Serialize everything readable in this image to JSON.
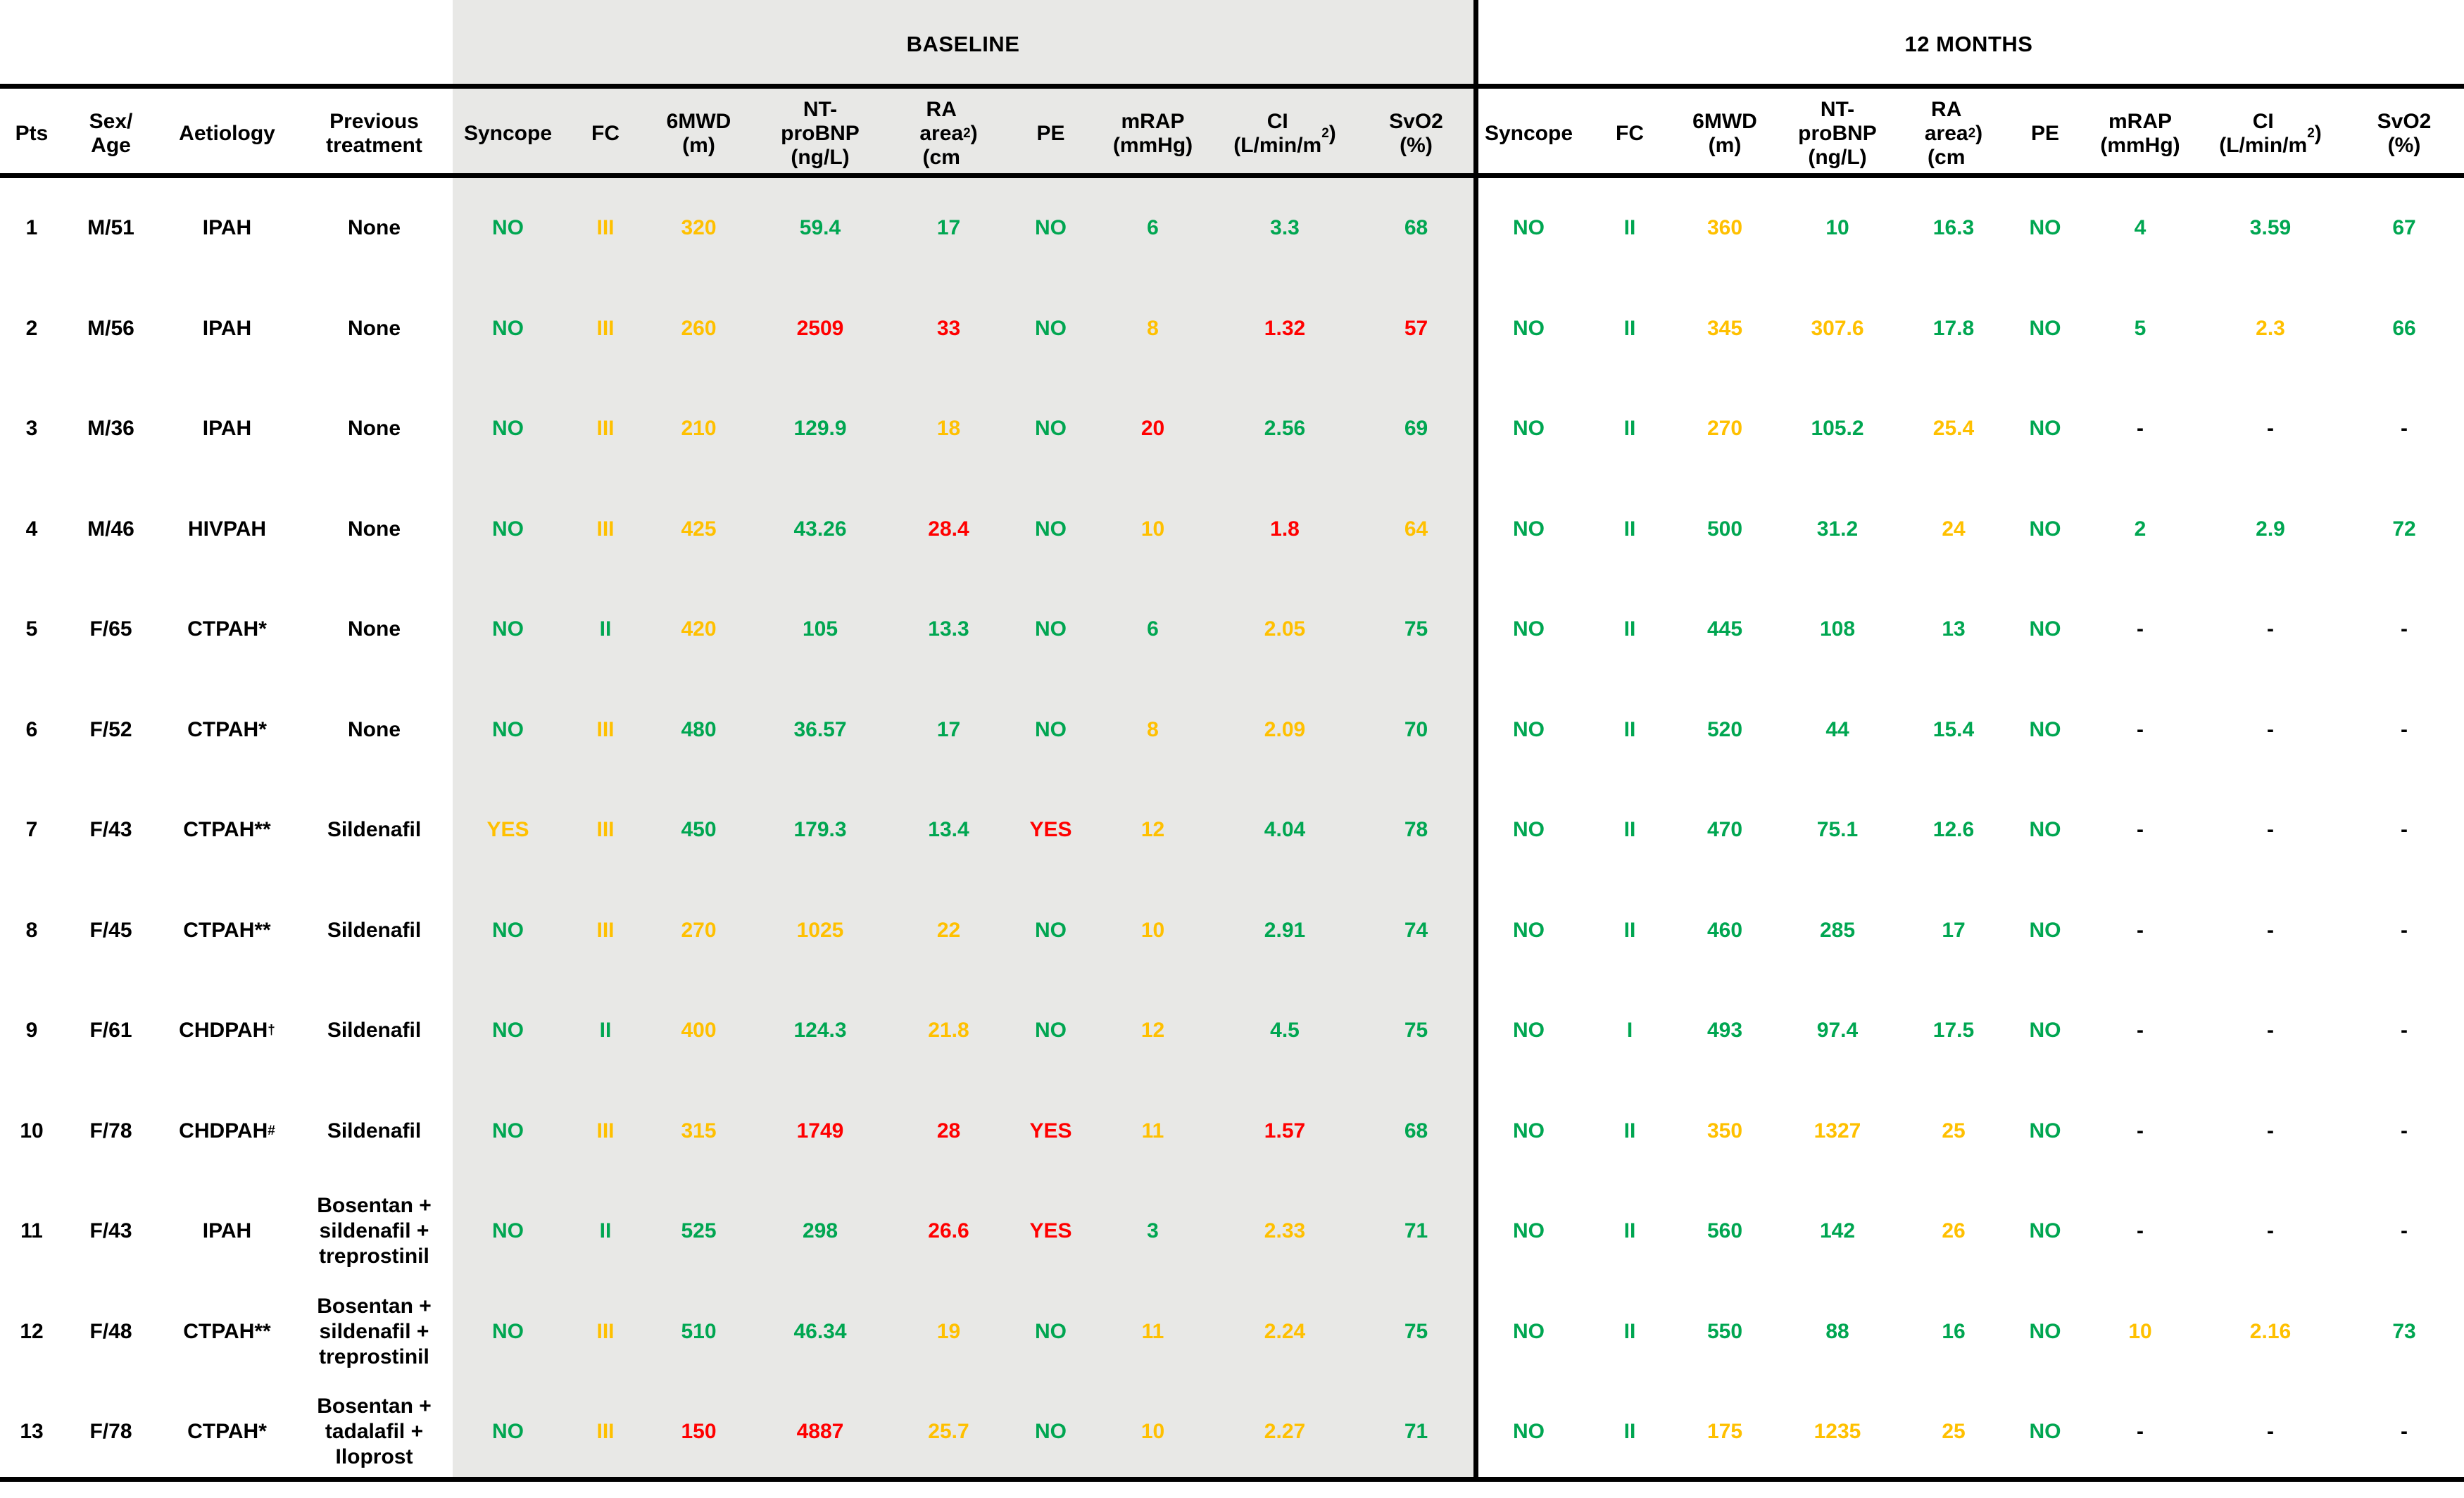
{
  "colors": {
    "green": "#00A651",
    "amber": "#FFC000",
    "red": "#FF0000",
    "black": "#000000",
    "section_bg": "#E8E8E6",
    "rule": "#000000"
  },
  "sections": [
    {
      "label": "BASELINE"
    },
    {
      "label": "12 MONTHS"
    }
  ],
  "left_headers": [
    "Pts",
    "Sex/\nAge",
    "Aetiology",
    "Previous\ntreatment"
  ],
  "metric_headers": [
    {
      "id": "syncope",
      "pre": "Syncope",
      "sup": "",
      "post": ""
    },
    {
      "id": "fc",
      "pre": "FC",
      "sup": "",
      "post": ""
    },
    {
      "id": "6mwd",
      "pre": "6MWD\n(m)",
      "sup": "",
      "post": ""
    },
    {
      "id": "ntprobnp",
      "pre": "NT-\nproBNP\n(ng/L)",
      "sup": "",
      "post": ""
    },
    {
      "id": "ra-area",
      "pre": "RA\narea\n(cm",
      "sup": "2",
      "post": ")"
    },
    {
      "id": "pe",
      "pre": "PE",
      "sup": "",
      "post": ""
    },
    {
      "id": "mrap",
      "pre": "mRAP\n(mmHg)",
      "sup": "",
      "post": ""
    },
    {
      "id": "ci",
      "pre": "CI\n(L/min/m",
      "sup": "2",
      "post": ")"
    },
    {
      "id": "svo2",
      "pre": "SvO2\n(%)",
      "sup": "",
      "post": ""
    }
  ],
  "rows": [
    {
      "pts": "1",
      "sex_age": "M/51",
      "aetiology": "IPAH",
      "aetiology_sup": "",
      "treatment": "None",
      "baseline": [
        {
          "v": "NO",
          "c": "g"
        },
        {
          "v": "III",
          "c": "y"
        },
        {
          "v": "320",
          "c": "y"
        },
        {
          "v": "59.4",
          "c": "g"
        },
        {
          "v": "17",
          "c": "g"
        },
        {
          "v": "NO",
          "c": "g"
        },
        {
          "v": "6",
          "c": "g"
        },
        {
          "v": "3.3",
          "c": "g"
        },
        {
          "v": "68",
          "c": "g"
        }
      ],
      "months12": [
        {
          "v": "NO",
          "c": "g"
        },
        {
          "v": "II",
          "c": "g"
        },
        {
          "v": "360",
          "c": "y"
        },
        {
          "v": "10",
          "c": "g"
        },
        {
          "v": "16.3",
          "c": "g"
        },
        {
          "v": "NO",
          "c": "g"
        },
        {
          "v": "4",
          "c": "g"
        },
        {
          "v": "3.59",
          "c": "g"
        },
        {
          "v": "67",
          "c": "g"
        }
      ]
    },
    {
      "pts": "2",
      "sex_age": "M/56",
      "aetiology": "IPAH",
      "aetiology_sup": "",
      "treatment": "None",
      "baseline": [
        {
          "v": "NO",
          "c": "g"
        },
        {
          "v": "III",
          "c": "y"
        },
        {
          "v": "260",
          "c": "y"
        },
        {
          "v": "2509",
          "c": "r"
        },
        {
          "v": "33",
          "c": "r"
        },
        {
          "v": "NO",
          "c": "g"
        },
        {
          "v": "8",
          "c": "y"
        },
        {
          "v": "1.32",
          "c": "r"
        },
        {
          "v": "57",
          "c": "r"
        }
      ],
      "months12": [
        {
          "v": "NO",
          "c": "g"
        },
        {
          "v": "II",
          "c": "g"
        },
        {
          "v": "345",
          "c": "y"
        },
        {
          "v": "307.6",
          "c": "y"
        },
        {
          "v": "17.8",
          "c": "g"
        },
        {
          "v": "NO",
          "c": "g"
        },
        {
          "v": "5",
          "c": "g"
        },
        {
          "v": "2.3",
          "c": "y"
        },
        {
          "v": "66",
          "c": "g"
        }
      ]
    },
    {
      "pts": "3",
      "sex_age": "M/36",
      "aetiology": "IPAH",
      "aetiology_sup": "",
      "treatment": "None",
      "baseline": [
        {
          "v": "NO",
          "c": "g"
        },
        {
          "v": "III",
          "c": "y"
        },
        {
          "v": "210",
          "c": "y"
        },
        {
          "v": "129.9",
          "c": "g"
        },
        {
          "v": "18",
          "c": "y"
        },
        {
          "v": "NO",
          "c": "g"
        },
        {
          "v": "20",
          "c": "r"
        },
        {
          "v": "2.56",
          "c": "g"
        },
        {
          "v": "69",
          "c": "g"
        }
      ],
      "months12": [
        {
          "v": "NO",
          "c": "g"
        },
        {
          "v": "II",
          "c": "g"
        },
        {
          "v": "270",
          "c": "y"
        },
        {
          "v": "105.2",
          "c": "g"
        },
        {
          "v": "25.4",
          "c": "y"
        },
        {
          "v": "NO",
          "c": "g"
        },
        {
          "v": "-",
          "c": "k"
        },
        {
          "v": "-",
          "c": "k"
        },
        {
          "v": "-",
          "c": "k"
        }
      ]
    },
    {
      "pts": "4",
      "sex_age": "M/46",
      "aetiology": "HIVPAH",
      "aetiology_sup": "",
      "treatment": "None",
      "baseline": [
        {
          "v": "NO",
          "c": "g"
        },
        {
          "v": "III",
          "c": "y"
        },
        {
          "v": "425",
          "c": "y"
        },
        {
          "v": "43.26",
          "c": "g"
        },
        {
          "v": "28.4",
          "c": "r"
        },
        {
          "v": "NO",
          "c": "g"
        },
        {
          "v": "10",
          "c": "y"
        },
        {
          "v": "1.8",
          "c": "r"
        },
        {
          "v": "64",
          "c": "y"
        }
      ],
      "months12": [
        {
          "v": "NO",
          "c": "g"
        },
        {
          "v": "II",
          "c": "g"
        },
        {
          "v": "500",
          "c": "g"
        },
        {
          "v": "31.2",
          "c": "g"
        },
        {
          "v": "24",
          "c": "y"
        },
        {
          "v": "NO",
          "c": "g"
        },
        {
          "v": "2",
          "c": "g"
        },
        {
          "v": "2.9",
          "c": "g"
        },
        {
          "v": "72",
          "c": "g"
        }
      ]
    },
    {
      "pts": "5",
      "sex_age": "F/65",
      "aetiology": "CTPAH*",
      "aetiology_sup": "",
      "treatment": "None",
      "baseline": [
        {
          "v": "NO",
          "c": "g"
        },
        {
          "v": "II",
          "c": "g"
        },
        {
          "v": "420",
          "c": "y"
        },
        {
          "v": "105",
          "c": "g"
        },
        {
          "v": "13.3",
          "c": "g"
        },
        {
          "v": "NO",
          "c": "g"
        },
        {
          "v": "6",
          "c": "g"
        },
        {
          "v": "2.05",
          "c": "y"
        },
        {
          "v": "75",
          "c": "g"
        }
      ],
      "months12": [
        {
          "v": "NO",
          "c": "g"
        },
        {
          "v": "II",
          "c": "g"
        },
        {
          "v": "445",
          "c": "g"
        },
        {
          "v": "108",
          "c": "g"
        },
        {
          "v": "13",
          "c": "g"
        },
        {
          "v": "NO",
          "c": "g"
        },
        {
          "v": "-",
          "c": "k"
        },
        {
          "v": "-",
          "c": "k"
        },
        {
          "v": "-",
          "c": "k"
        }
      ]
    },
    {
      "pts": "6",
      "sex_age": "F/52",
      "aetiology": "CTPAH*",
      "aetiology_sup": "",
      "treatment": "None",
      "baseline": [
        {
          "v": "NO",
          "c": "g"
        },
        {
          "v": "III",
          "c": "y"
        },
        {
          "v": "480",
          "c": "g"
        },
        {
          "v": "36.57",
          "c": "g"
        },
        {
          "v": "17",
          "c": "g"
        },
        {
          "v": "NO",
          "c": "g"
        },
        {
          "v": "8",
          "c": "y"
        },
        {
          "v": "2.09",
          "c": "y"
        },
        {
          "v": "70",
          "c": "g"
        }
      ],
      "months12": [
        {
          "v": "NO",
          "c": "g"
        },
        {
          "v": "II",
          "c": "g"
        },
        {
          "v": "520",
          "c": "g"
        },
        {
          "v": "44",
          "c": "g"
        },
        {
          "v": "15.4",
          "c": "g"
        },
        {
          "v": "NO",
          "c": "g"
        },
        {
          "v": "-",
          "c": "k"
        },
        {
          "v": "-",
          "c": "k"
        },
        {
          "v": "-",
          "c": "k"
        }
      ]
    },
    {
      "pts": "7",
      "sex_age": "F/43",
      "aetiology": "CTPAH**",
      "aetiology_sup": "",
      "treatment": "Sildenafil",
      "baseline": [
        {
          "v": "YES",
          "c": "y"
        },
        {
          "v": "III",
          "c": "y"
        },
        {
          "v": "450",
          "c": "g"
        },
        {
          "v": "179.3",
          "c": "g"
        },
        {
          "v": "13.4",
          "c": "g"
        },
        {
          "v": "YES",
          "c": "r"
        },
        {
          "v": "12",
          "c": "y"
        },
        {
          "v": "4.04",
          "c": "g"
        },
        {
          "v": "78",
          "c": "g"
        }
      ],
      "months12": [
        {
          "v": "NO",
          "c": "g"
        },
        {
          "v": "II",
          "c": "g"
        },
        {
          "v": "470",
          "c": "g"
        },
        {
          "v": "75.1",
          "c": "g"
        },
        {
          "v": "12.6",
          "c": "g"
        },
        {
          "v": "NO",
          "c": "g"
        },
        {
          "v": "-",
          "c": "k"
        },
        {
          "v": "-",
          "c": "k"
        },
        {
          "v": "-",
          "c": "k"
        }
      ]
    },
    {
      "pts": "8",
      "sex_age": "F/45",
      "aetiology": "CTPAH**",
      "aetiology_sup": "",
      "treatment": "Sildenafil",
      "baseline": [
        {
          "v": "NO",
          "c": "g"
        },
        {
          "v": "III",
          "c": "y"
        },
        {
          "v": "270",
          "c": "y"
        },
        {
          "v": "1025",
          "c": "y"
        },
        {
          "v": "22",
          "c": "y"
        },
        {
          "v": "NO",
          "c": "g"
        },
        {
          "v": "10",
          "c": "y"
        },
        {
          "v": "2.91",
          "c": "g"
        },
        {
          "v": "74",
          "c": "g"
        }
      ],
      "months12": [
        {
          "v": "NO",
          "c": "g"
        },
        {
          "v": "II",
          "c": "g"
        },
        {
          "v": "460",
          "c": "g"
        },
        {
          "v": "285",
          "c": "g"
        },
        {
          "v": "17",
          "c": "g"
        },
        {
          "v": "NO",
          "c": "g"
        },
        {
          "v": "-",
          "c": "k"
        },
        {
          "v": "-",
          "c": "k"
        },
        {
          "v": "-",
          "c": "k"
        }
      ]
    },
    {
      "pts": "9",
      "sex_age": "F/61",
      "aetiology": "CHDPAH",
      "aetiology_sup": "†",
      "treatment": "Sildenafil",
      "baseline": [
        {
          "v": "NO",
          "c": "g"
        },
        {
          "v": "II",
          "c": "g"
        },
        {
          "v": "400",
          "c": "y"
        },
        {
          "v": "124.3",
          "c": "g"
        },
        {
          "v": "21.8",
          "c": "y"
        },
        {
          "v": "NO",
          "c": "g"
        },
        {
          "v": "12",
          "c": "y"
        },
        {
          "v": "4.5",
          "c": "g"
        },
        {
          "v": "75",
          "c": "g"
        }
      ],
      "months12": [
        {
          "v": "NO",
          "c": "g"
        },
        {
          "v": "I",
          "c": "g"
        },
        {
          "v": "493",
          "c": "g"
        },
        {
          "v": "97.4",
          "c": "g"
        },
        {
          "v": "17.5",
          "c": "g"
        },
        {
          "v": "NO",
          "c": "g"
        },
        {
          "v": "-",
          "c": "k"
        },
        {
          "v": "-",
          "c": "k"
        },
        {
          "v": "-",
          "c": "k"
        }
      ]
    },
    {
      "pts": "10",
      "sex_age": "F/78",
      "aetiology": "CHDPAH",
      "aetiology_sup": "#",
      "treatment": "Sildenafil",
      "baseline": [
        {
          "v": "NO",
          "c": "g"
        },
        {
          "v": "III",
          "c": "y"
        },
        {
          "v": "315",
          "c": "y"
        },
        {
          "v": "1749",
          "c": "r"
        },
        {
          "v": "28",
          "c": "r"
        },
        {
          "v": "YES",
          "c": "r"
        },
        {
          "v": "11",
          "c": "y"
        },
        {
          "v": "1.57",
          "c": "r"
        },
        {
          "v": "68",
          "c": "g"
        }
      ],
      "months12": [
        {
          "v": "NO",
          "c": "g"
        },
        {
          "v": "II",
          "c": "g"
        },
        {
          "v": "350",
          "c": "y"
        },
        {
          "v": "1327",
          "c": "y"
        },
        {
          "v": "25",
          "c": "y"
        },
        {
          "v": "NO",
          "c": "g"
        },
        {
          "v": "-",
          "c": "k"
        },
        {
          "v": "-",
          "c": "k"
        },
        {
          "v": "-",
          "c": "k"
        }
      ]
    },
    {
      "pts": "11",
      "sex_age": "F/43",
      "aetiology": "IPAH",
      "aetiology_sup": "",
      "treatment": "Bosentan +\nsildenafil +\ntreprostinil",
      "baseline": [
        {
          "v": "NO",
          "c": "g"
        },
        {
          "v": "II",
          "c": "g"
        },
        {
          "v": "525",
          "c": "g"
        },
        {
          "v": "298",
          "c": "g"
        },
        {
          "v": "26.6",
          "c": "r"
        },
        {
          "v": "YES",
          "c": "r"
        },
        {
          "v": "3",
          "c": "g"
        },
        {
          "v": "2.33",
          "c": "y"
        },
        {
          "v": "71",
          "c": "g"
        }
      ],
      "months12": [
        {
          "v": "NO",
          "c": "g"
        },
        {
          "v": "II",
          "c": "g"
        },
        {
          "v": "560",
          "c": "g"
        },
        {
          "v": "142",
          "c": "g"
        },
        {
          "v": "26",
          "c": "y"
        },
        {
          "v": "NO",
          "c": "g"
        },
        {
          "v": "-",
          "c": "k"
        },
        {
          "v": "-",
          "c": "k"
        },
        {
          "v": "-",
          "c": "k"
        }
      ]
    },
    {
      "pts": "12",
      "sex_age": "F/48",
      "aetiology": "CTPAH**",
      "aetiology_sup": "",
      "treatment": "Bosentan +\nsildenafil +\ntreprostinil",
      "baseline": [
        {
          "v": "NO",
          "c": "g"
        },
        {
          "v": "III",
          "c": "y"
        },
        {
          "v": "510",
          "c": "g"
        },
        {
          "v": "46.34",
          "c": "g"
        },
        {
          "v": "19",
          "c": "y"
        },
        {
          "v": "NO",
          "c": "g"
        },
        {
          "v": "11",
          "c": "y"
        },
        {
          "v": "2.24",
          "c": "y"
        },
        {
          "v": "75",
          "c": "g"
        }
      ],
      "months12": [
        {
          "v": "NO",
          "c": "g"
        },
        {
          "v": "II",
          "c": "g"
        },
        {
          "v": "550",
          "c": "g"
        },
        {
          "v": "88",
          "c": "g"
        },
        {
          "v": "16",
          "c": "g"
        },
        {
          "v": "NO",
          "c": "g"
        },
        {
          "v": "10",
          "c": "y"
        },
        {
          "v": "2.16",
          "c": "y"
        },
        {
          "v": "73",
          "c": "g"
        }
      ]
    },
    {
      "pts": "13",
      "sex_age": "F/78",
      "aetiology": "CTPAH*",
      "aetiology_sup": "",
      "treatment": "Bosentan +\ntadalafil +\nIloprost",
      "baseline": [
        {
          "v": "NO",
          "c": "g"
        },
        {
          "v": "III",
          "c": "y"
        },
        {
          "v": "150",
          "c": "r"
        },
        {
          "v": "4887",
          "c": "r"
        },
        {
          "v": "25.7",
          "c": "y"
        },
        {
          "v": "NO",
          "c": "g"
        },
        {
          "v": "10",
          "c": "y"
        },
        {
          "v": "2.27",
          "c": "y"
        },
        {
          "v": "71",
          "c": "g"
        }
      ],
      "months12": [
        {
          "v": "NO",
          "c": "g"
        },
        {
          "v": "II",
          "c": "g"
        },
        {
          "v": "175",
          "c": "y"
        },
        {
          "v": "1235",
          "c": "y"
        },
        {
          "v": "25",
          "c": "y"
        },
        {
          "v": "NO",
          "c": "g"
        },
        {
          "v": "-",
          "c": "k"
        },
        {
          "v": "-",
          "c": "k"
        },
        {
          "v": "-",
          "c": "k"
        }
      ]
    }
  ]
}
